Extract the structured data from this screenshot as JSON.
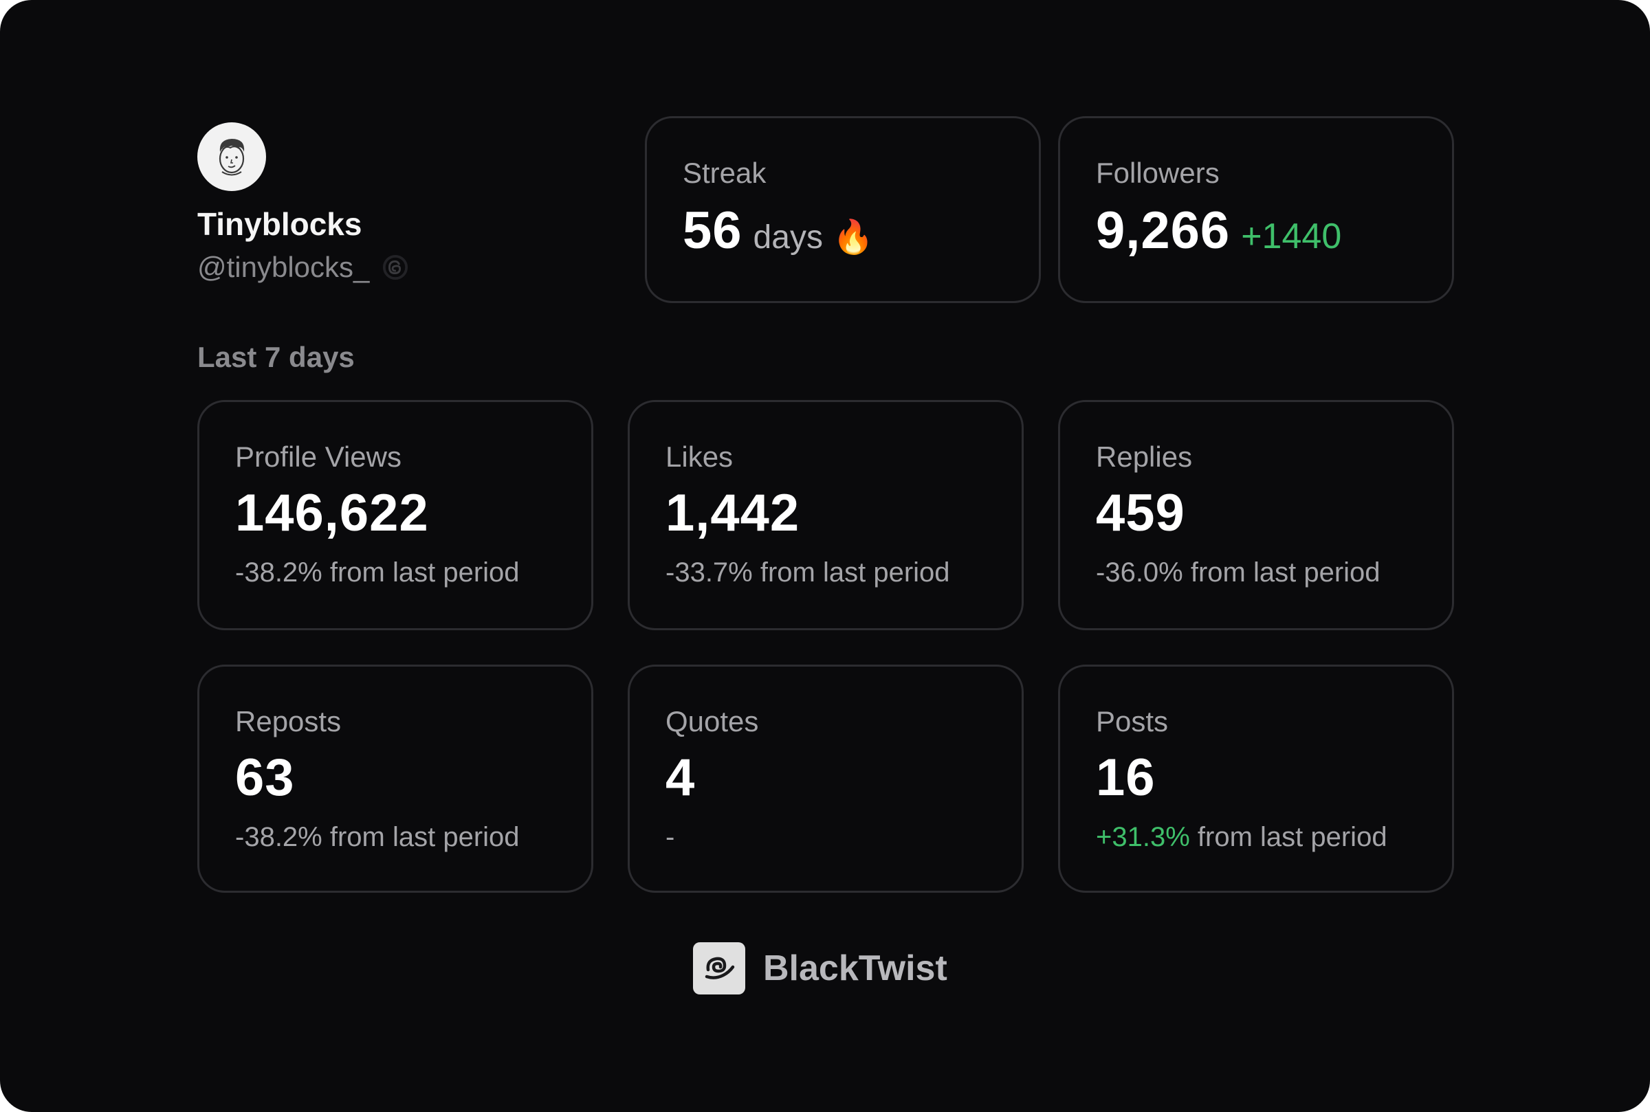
{
  "profile": {
    "name": "Tinyblocks",
    "handle": "@tinyblocks_",
    "avatar_icon": "avatar-face-icon",
    "platform_icon": "threads-icon"
  },
  "streak": {
    "label": "Streak",
    "value": "56",
    "unit": "days",
    "emoji": "🔥"
  },
  "followers": {
    "label": "Followers",
    "value": "9,266",
    "delta": "+1440"
  },
  "section": {
    "title": "Last 7 days"
  },
  "stats": [
    {
      "label": "Profile Views",
      "value": "146,622",
      "change": "-38.2%",
      "suffix": " from last period"
    },
    {
      "label": "Likes",
      "value": "1,442",
      "change": "-33.7%",
      "suffix": " from last period"
    },
    {
      "label": "Replies",
      "value": "459",
      "change": "-36.0%",
      "suffix": " from last period"
    },
    {
      "label": "Reposts",
      "value": "63",
      "change": "-38.2%",
      "suffix": " from last period"
    },
    {
      "label": "Quotes",
      "value": "4",
      "change": "-",
      "suffix": ""
    },
    {
      "label": "Posts",
      "value": "16",
      "change": "+31.3%",
      "suffix": " from last period"
    }
  ],
  "brand": {
    "name": "BlackTwist",
    "logo_icon": "blacktwist-logo-icon"
  },
  "colors": {
    "background": "#0a0a0c",
    "card_border": "#2c2c30",
    "positive": "#3fbf6a",
    "muted_text": "#a4a4a8"
  }
}
